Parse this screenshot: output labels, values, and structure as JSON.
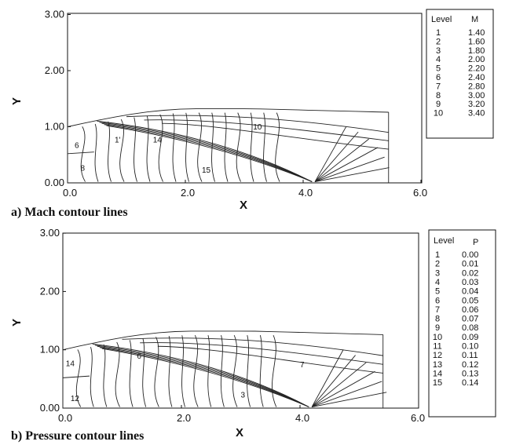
{
  "chart_data": [
    {
      "type": "contour",
      "caption": "a) Mach contour lines",
      "xlabel": "X",
      "ylabel": "Y",
      "xlim": [
        0.0,
        6.0
      ],
      "ylim": [
        0.0,
        3.0
      ],
      "xticks": [
        "0.0",
        "2.0",
        "4.0",
        "6.0"
      ],
      "yticks": [
        "0.00",
        "1.00",
        "2.00",
        "3.00"
      ],
      "legend": {
        "headers": [
          "Level",
          "M"
        ],
        "rows": [
          [
            "1",
            "1.40"
          ],
          [
            "2",
            "1.60"
          ],
          [
            "3",
            "1.80"
          ],
          [
            "4",
            "2.00"
          ],
          [
            "5",
            "2.20"
          ],
          [
            "6",
            "2.40"
          ],
          [
            "7",
            "2.80"
          ],
          [
            "8",
            "3.00"
          ],
          [
            "9",
            "3.20"
          ],
          [
            "10",
            "3.40"
          ]
        ]
      },
      "contour_labels": [
        {
          "text": "10",
          "x": 3.15,
          "y": 0.95
        },
        {
          "text": "6",
          "x": 0.12,
          "y": 0.62
        },
        {
          "text": "1'",
          "x": 0.8,
          "y": 0.72
        },
        {
          "text": "14",
          "x": 1.45,
          "y": 0.72
        },
        {
          "text": "8",
          "x": 0.22,
          "y": 0.22
        },
        {
          "text": "15",
          "x": 2.28,
          "y": 0.18
        }
      ]
    },
    {
      "type": "contour",
      "caption": "b) Pressure contour lines",
      "xlabel": "X",
      "ylabel": "Y",
      "xlim": [
        0.0,
        6.0
      ],
      "ylim": [
        0.0,
        3.0
      ],
      "xticks": [
        "0.0",
        "2.0",
        "4.0",
        "6.0"
      ],
      "yticks": [
        "0.00",
        "1.00",
        "2.00",
        "3.00"
      ],
      "legend": {
        "headers": [
          "Level",
          "P"
        ],
        "rows": [
          [
            "1",
            "0.00"
          ],
          [
            "2",
            "0.01"
          ],
          [
            "3",
            "0.02"
          ],
          [
            "4",
            "0.03"
          ],
          [
            "5",
            "0.04"
          ],
          [
            "6",
            "0.05"
          ],
          [
            "7",
            "0.06"
          ],
          [
            "8",
            "0.07"
          ],
          [
            "9",
            "0.08"
          ],
          [
            "10",
            "0.09"
          ],
          [
            "11",
            "0.10"
          ],
          [
            "12",
            "0.11"
          ],
          [
            "13",
            "0.12"
          ],
          [
            "14",
            "0.13"
          ],
          [
            "15",
            "0.14"
          ]
        ]
      },
      "contour_labels": [
        {
          "text": "6",
          "x": 1.25,
          "y": 0.85
        },
        {
          "text": "7",
          "x": 4.0,
          "y": 0.7
        },
        {
          "text": "14",
          "x": 0.05,
          "y": 0.72
        },
        {
          "text": "12",
          "x": 0.13,
          "y": 0.12
        },
        {
          "text": "3",
          "x": 3.0,
          "y": 0.18
        }
      ]
    }
  ]
}
